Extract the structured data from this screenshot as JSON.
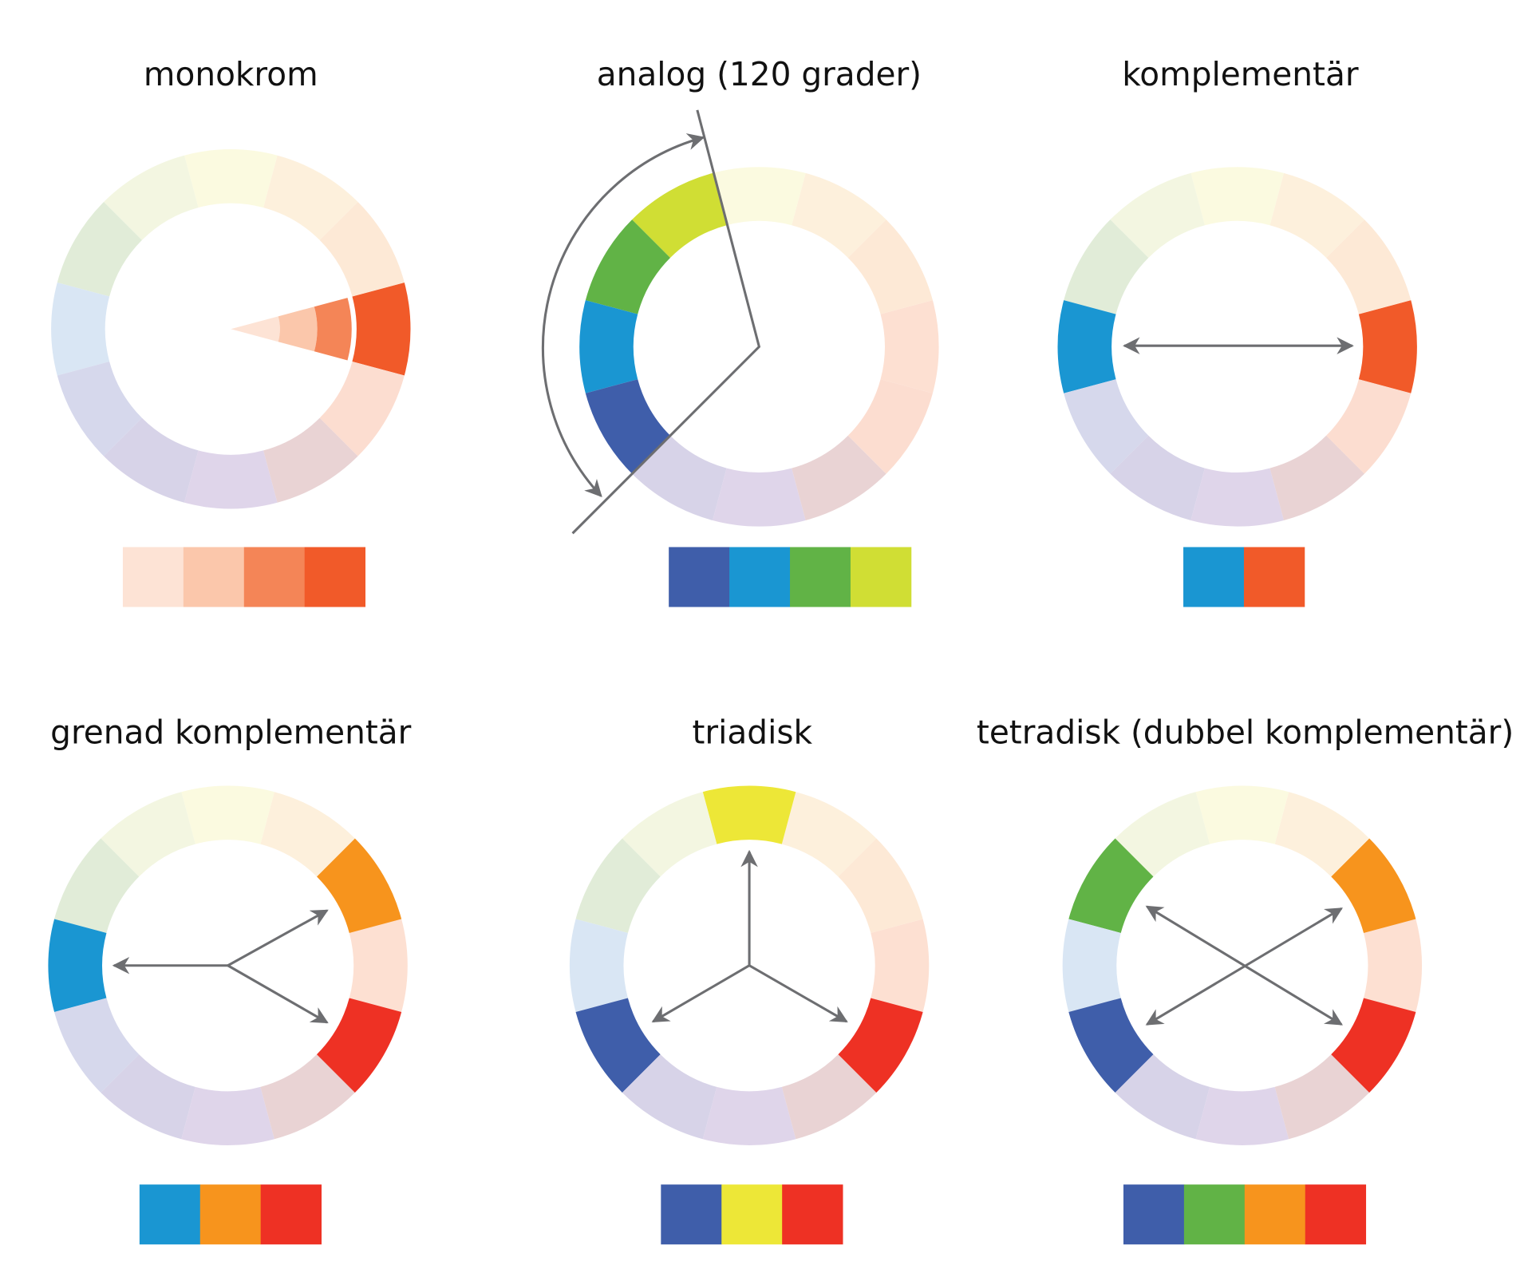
{
  "panels": [
    {
      "title": "monokrom"
    },
    {
      "title": "analog (120 grader)"
    },
    {
      "title": "komplementär"
    },
    {
      "title": "grenad komplementär"
    },
    {
      "title": "triadisk"
    },
    {
      "title": "tetradisk (dubbel komplementär)"
    }
  ]
}
